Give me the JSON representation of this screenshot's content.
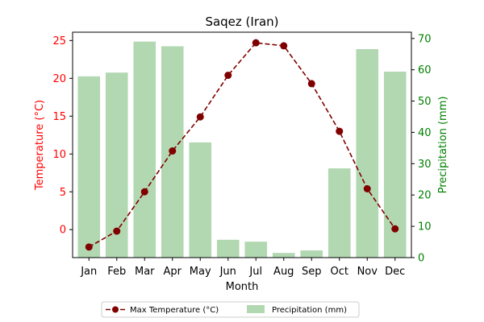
{
  "chart_data": {
    "type": "bar+line",
    "title": "Saqez (Iran)",
    "xlabel": "Month",
    "ylabel_left": "Temperature (°C)",
    "ylabel_right": "Precipitation (mm)",
    "categories": [
      "Jan",
      "Feb",
      "Mar",
      "Apr",
      "May",
      "Jun",
      "Jul",
      "Aug",
      "Sep",
      "Oct",
      "Nov",
      "Dec"
    ],
    "ylim_left": [
      -3.7,
      26.1
    ],
    "ylim_right": [
      0,
      72
    ],
    "yticks_left": [
      0,
      5,
      10,
      15,
      20,
      25
    ],
    "yticks_right": [
      0,
      10,
      20,
      30,
      40,
      50,
      60,
      70
    ],
    "grid": false,
    "legend_position": "bottom-center",
    "series": [
      {
        "name": "Max Temperature (°C)",
        "type": "line",
        "axis": "left",
        "color": "#800000",
        "values": [
          -2.3,
          -0.2,
          5.0,
          10.4,
          14.9,
          20.4,
          24.7,
          24.3,
          19.3,
          13.0,
          5.4,
          0.1
        ]
      },
      {
        "name": "Precipitation (mm)",
        "type": "bar",
        "axis": "right",
        "color": "#b2d8b2",
        "values": [
          57.9,
          59.1,
          69.0,
          67.5,
          36.8,
          5.7,
          5.1,
          1.5,
          2.3,
          28.5,
          66.6,
          59.4
        ]
      }
    ],
    "colors": {
      "left_axis": "#ff0000",
      "right_axis": "#008000"
    }
  }
}
